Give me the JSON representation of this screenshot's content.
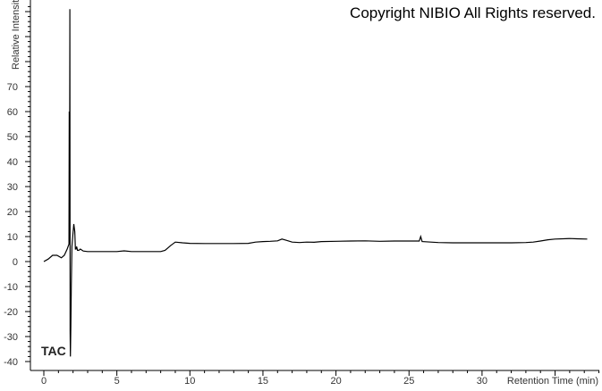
{
  "chart_data": {
    "type": "line",
    "title": "",
    "annotation": "Copyright NIBIO All Rights reserved.",
    "trace_label": "TAC",
    "xlabel": "Retention Time (min)",
    "ylabel": "Relative Intensity",
    "xlim": [
      0,
      38
    ],
    "ylim": [
      -42,
      103
    ],
    "xticks": [
      0,
      5,
      10,
      15,
      20,
      25,
      30
    ],
    "yticks": [
      -40,
      -30,
      -20,
      -10,
      0,
      10,
      20,
      30,
      40,
      50,
      60,
      70
    ],
    "grid": false,
    "line_color": "#000000",
    "x": [
      0,
      0.3,
      0.6,
      0.9,
      1.2,
      1.4,
      1.6,
      1.72,
      1.74,
      1.76,
      1.78,
      1.8,
      1.82,
      1.85,
      1.88,
      1.92,
      1.98,
      2.05,
      2.12,
      2.16,
      2.2,
      2.25,
      2.3,
      2.4,
      2.5,
      2.7,
      3.0,
      3.5,
      4.0,
      5.0,
      5.5,
      6.0,
      7.0,
      8.0,
      8.3,
      8.7,
      9.0,
      9.5,
      10.0,
      11.0,
      12.0,
      13.0,
      14.0,
      14.5,
      15.0,
      15.5,
      16.0,
      16.3,
      16.6,
      17.0,
      17.5,
      18.0,
      18.5,
      19.0,
      20.0,
      21.0,
      22.0,
      23.0,
      24.0,
      25.0,
      25.7,
      25.8,
      25.9,
      26.5,
      27.0,
      28.0,
      29.0,
      30.0,
      31.0,
      32.0,
      33.0,
      33.5,
      34.0,
      34.5,
      35.0,
      36.0,
      36.5,
      37.2
    ],
    "y": [
      0,
      1,
      2.5,
      2.5,
      1.5,
      2.5,
      5,
      7,
      60,
      7,
      101,
      -28,
      -38,
      -26,
      -10,
      6,
      10,
      15,
      12,
      5,
      5,
      6,
      4.5,
      4.5,
      5,
      4.2,
      4,
      4,
      4,
      4,
      4.3,
      4,
      4,
      4,
      4.5,
      6.5,
      7.8,
      7.5,
      7.3,
      7.2,
      7.2,
      7.2,
      7.3,
      7.8,
      8,
      8.1,
      8.3,
      9,
      8.5,
      7.8,
      7.6,
      7.8,
      7.7,
      8,
      8.1,
      8.2,
      8.3,
      8.1,
      8.2,
      8.2,
      8.2,
      10,
      8,
      7.8,
      7.6,
      7.5,
      7.5,
      7.5,
      7.5,
      7.5,
      7.6,
      7.8,
      8.2,
      8.7,
      9,
      9.2,
      9.1,
      9
    ]
  }
}
